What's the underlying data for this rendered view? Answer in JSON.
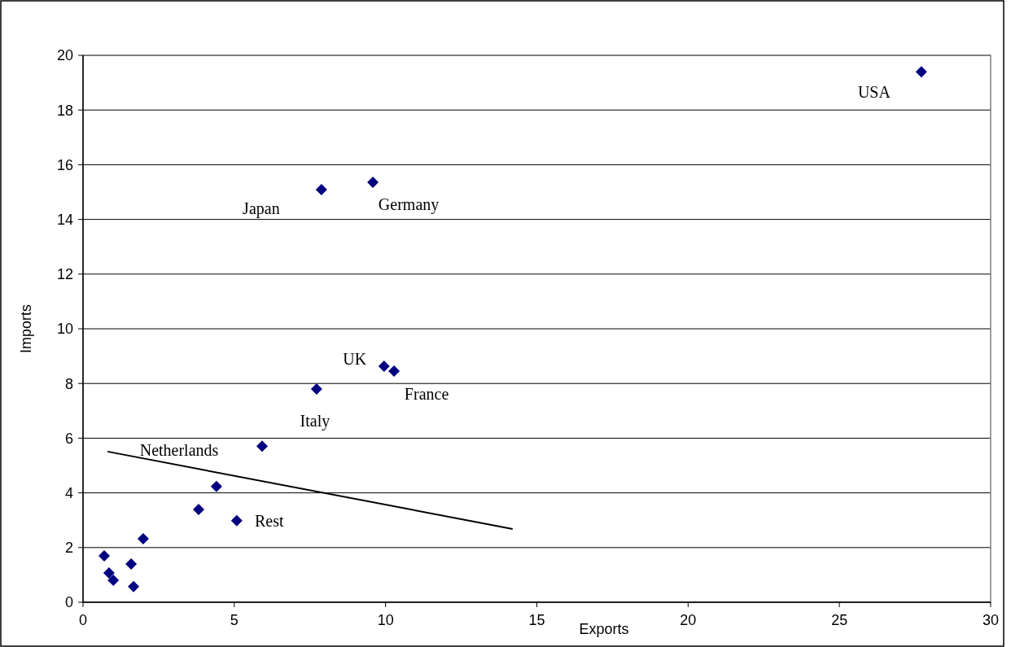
{
  "chart_data": {
    "type": "scatter",
    "xlabel": "Exports",
    "ylabel": "Imports",
    "xlim": [
      0,
      30
    ],
    "xticks": [
      0,
      5,
      10,
      15,
      20,
      25,
      30
    ],
    "ylim": [
      0,
      20
    ],
    "yticks": [
      0,
      2,
      4,
      6,
      8,
      10,
      12,
      14,
      16,
      18,
      20
    ],
    "grid": "y",
    "series": [
      {
        "marker": "diamond",
        "color": "#000080",
        "x": [
          27.71,
          9.58,
          7.88,
          9.95,
          10.28,
          7.72,
          5.92,
          4.41,
          3.82,
          5.08,
          1.99,
          0.7,
          1.59,
          0.86,
          1.0,
          1.67
        ],
        "values": [
          19.4,
          15.36,
          15.09,
          8.63,
          8.45,
          7.8,
          5.71,
          4.23,
          3.39,
          2.98,
          2.32,
          1.7,
          1.4,
          1.07,
          0.8,
          0.57
        ]
      },
      {
        "type": "line",
        "color": "#000000",
        "x": [
          0.81,
          14.2
        ],
        "values": [
          5.51,
          2.68
        ]
      }
    ],
    "annotations": [
      {
        "text": "USA",
        "x": 27.71,
        "y": 19.4
      },
      {
        "text": "Germany",
        "x": 9.58,
        "y": 15.36
      },
      {
        "text": "Japan",
        "x": 7.88,
        "y": 15.09
      },
      {
        "text": "UK",
        "x": 9.95,
        "y": 8.63
      },
      {
        "text": "France",
        "x": 10.28,
        "y": 8.45
      },
      {
        "text": "Italy",
        "x": 7.72,
        "y": 7.8
      },
      {
        "text": "Netherlands",
        "x": 5.92,
        "y": 5.71
      },
      {
        "text": "Rest",
        "x": 5.08,
        "y": 2.98
      }
    ]
  }
}
